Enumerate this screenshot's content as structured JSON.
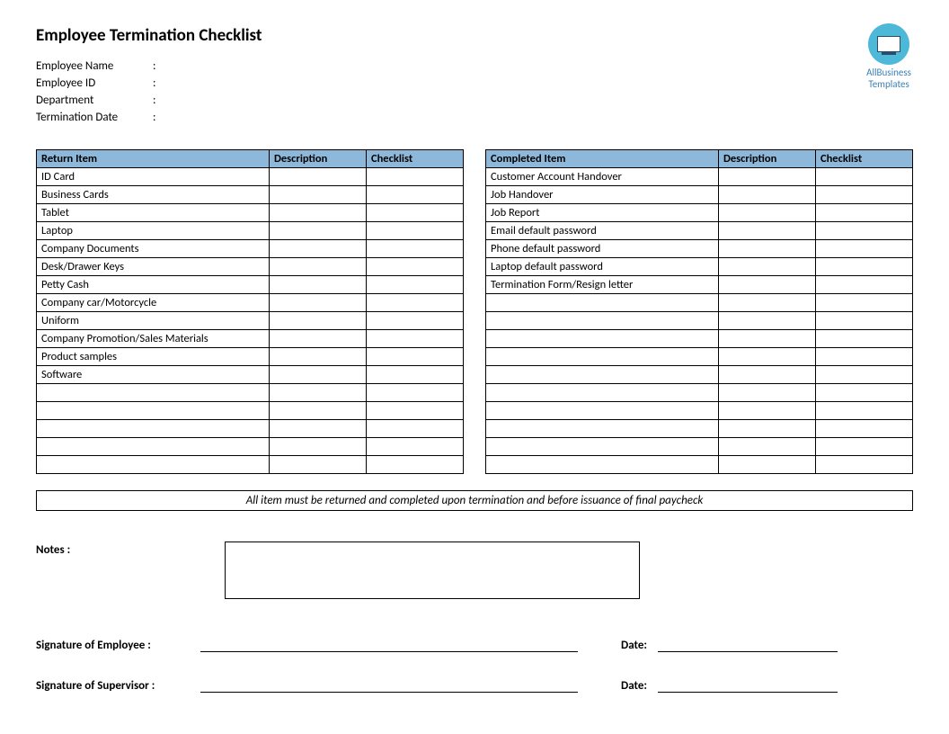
{
  "title": "Employee Termination Checklist",
  "logo": {
    "line1": "AllBusiness",
    "line2": "Templates",
    "circle_bg": "#4db8d8",
    "text_color": "#3b7fb5"
  },
  "info_fields": [
    {
      "label": "Employee Name"
    },
    {
      "label": "Employee ID"
    },
    {
      "label": "Department"
    },
    {
      "label": "Termination Date"
    }
  ],
  "left_table": {
    "headers": [
      "Return Item",
      "Description",
      "Checklist"
    ],
    "header_bg": "#8db8da",
    "total_rows": 17,
    "items": [
      "ID Card",
      "Business Cards",
      "Tablet",
      "Laptop",
      "Company Documents",
      "Desk/Drawer Keys",
      "Petty Cash",
      "Company car/Motorcycle",
      "Uniform",
      "Company Promotion/Sales Materials",
      "Product samples",
      "Software"
    ]
  },
  "right_table": {
    "headers": [
      "Completed Item",
      "Description",
      "Checklist"
    ],
    "header_bg": "#8db8da",
    "total_rows": 17,
    "items": [
      "Customer Account Handover",
      "Job Handover",
      "Job Report",
      "Email default password",
      "Phone default password",
      "Laptop default password",
      "Termination Form/Resign letter"
    ]
  },
  "notice": "All item must be returned and completed upon termination and before issuance of final paycheck",
  "notes_label": "Notes :",
  "signatures": [
    {
      "label": "Signature of Employee :",
      "date_label": "Date:"
    },
    {
      "label": "Signature of Supervisor :",
      "date_label": "Date:"
    }
  ]
}
